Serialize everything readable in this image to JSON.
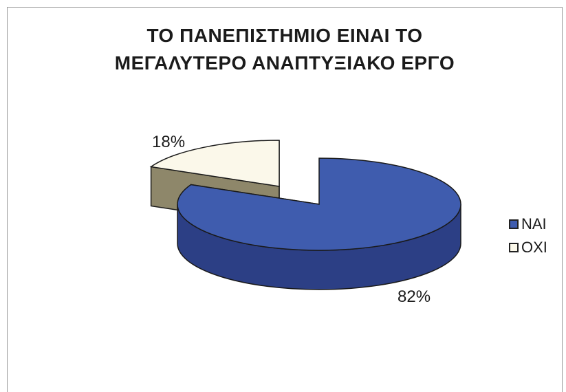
{
  "title": {
    "line1": "ΤΟ ΠΑΝΕΠΙΣΤΗΜΙΟ ΕΙΝΑΙ ΤΟ",
    "line2": "ΜΕΓΑΛΥΤΕΡΟ ΑΝΑΠΤΥΞΙΑΚΟ ΕΡΓΟ"
  },
  "colors": {
    "nai_top": "#3f5cae",
    "nai_side": "#2c3f85",
    "oxi_top": "#fbf8ea",
    "oxi_side": "#8e876a",
    "edge": "#1a1a1a"
  },
  "chart_data": {
    "type": "pie",
    "title": "ΤΟ ΠΑΝΕΠΙΣΤΗΜΙΟ ΕΙΝΑΙ ΤΟ ΜΕΓΑΛΥΤΕΡΟ ΑΝΑΠΤΥΞΙΑΚΟ ΕΡΓΟ",
    "categories": [
      "ΝΑΙ",
      "ΟΧΙ"
    ],
    "values": [
      82,
      18
    ],
    "data_labels": [
      "82%",
      "18%"
    ],
    "legend_placement": "right",
    "style": "3d-exploded"
  }
}
